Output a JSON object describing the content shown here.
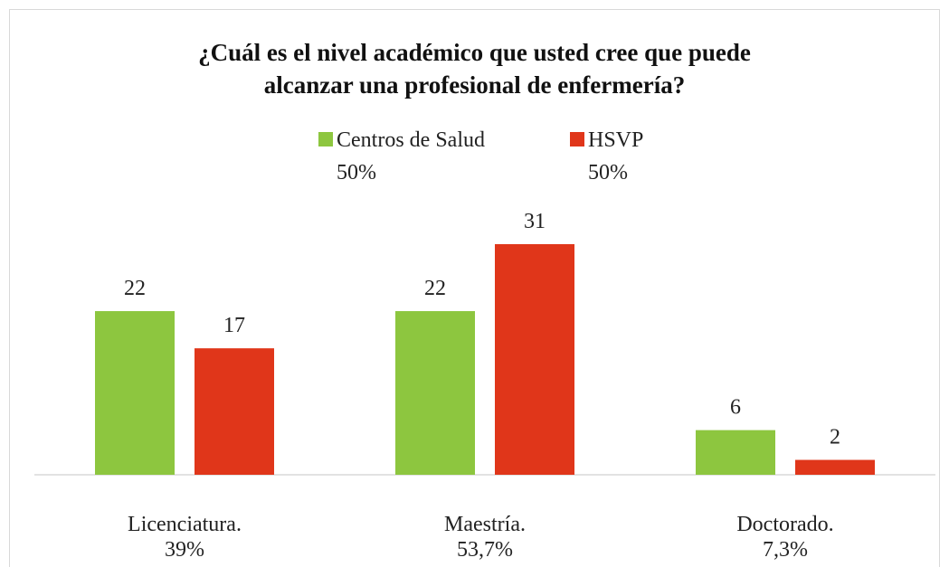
{
  "chart_data": {
    "type": "bar",
    "title": "¿Cuál es el nivel académico que usted cree que puede\nalcanzar una profesional de enfermería?",
    "categories": [
      "Licenciatura.\n39%",
      "Maestría.\n53,7%",
      "Doctorado.\n7,3%"
    ],
    "series": [
      {
        "name": "Centros de Salud\n50%",
        "color": "#8dc63f",
        "values": [
          22,
          22,
          6
        ]
      },
      {
        "name": "HSVP\n50%",
        "color": "#e0361a",
        "values": [
          17,
          31,
          2
        ]
      }
    ]
  }
}
